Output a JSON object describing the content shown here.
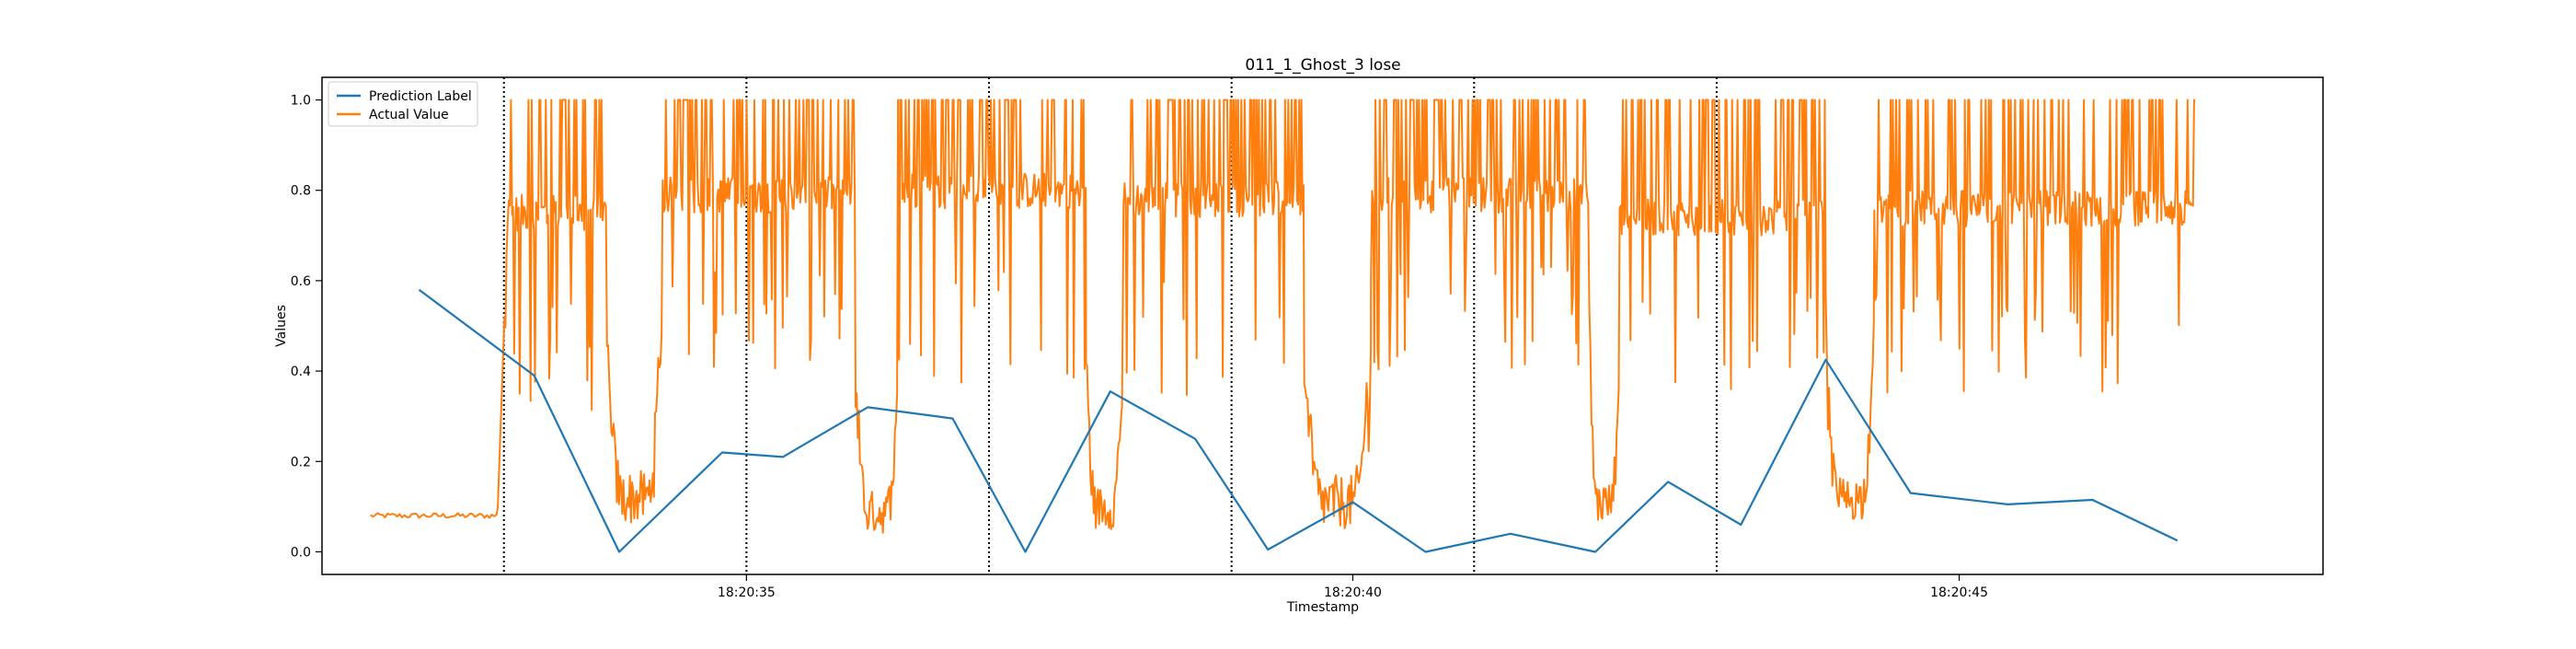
{
  "chart_data": {
    "type": "line",
    "title": "011_1_Ghost_3 lose",
    "xlabel": "Timestamp",
    "ylabel": "Values",
    "x_unit": "seconds",
    "xlim": [
      31.5,
      48.0
    ],
    "ylim": [
      -0.05,
      1.05
    ],
    "x_ticks": [
      {
        "value": 35,
        "label": "18:20:35"
      },
      {
        "value": 40,
        "label": "18:20:40"
      },
      {
        "value": 45,
        "label": "18:20:45"
      }
    ],
    "y_ticks": [
      {
        "value": 0.0,
        "label": "0.0"
      },
      {
        "value": 0.2,
        "label": "0.2"
      },
      {
        "value": 0.4,
        "label": "0.4"
      },
      {
        "value": 0.6,
        "label": "0.6"
      },
      {
        "value": 0.8,
        "label": "0.8"
      },
      {
        "value": 1.0,
        "label": "1.0"
      }
    ],
    "grid": false,
    "legend_position": "upper-left",
    "vertical_markers": [
      33.0,
      35.0,
      37.0,
      39.0,
      41.0,
      43.0
    ],
    "series": [
      {
        "name": "Prediction Label",
        "color": "#1f77b4",
        "x": [
          32.3,
          33.25,
          33.95,
          34.8,
          35.3,
          36.0,
          36.7,
          37.3,
          38.0,
          38.7,
          39.3,
          40.0,
          40.6,
          41.3,
          42.0,
          42.6,
          43.2,
          43.9,
          44.6,
          45.4,
          46.1,
          46.8
        ],
        "y": [
          0.58,
          0.39,
          0.0,
          0.22,
          0.21,
          0.32,
          0.295,
          0.0,
          0.355,
          0.25,
          0.005,
          0.11,
          0.0,
          0.04,
          0.0,
          0.155,
          0.06,
          0.425,
          0.13,
          0.105,
          0.115,
          0.025
        ]
      },
      {
        "name": "Actual Value",
        "color": "#ff7f0e",
        "segments": [
          {
            "x0": 31.9,
            "x1": 32.95,
            "shape": "flat",
            "base": 0.08,
            "amp": 0.012
          },
          {
            "x0": 32.95,
            "x1": 33.85,
            "shape": "rise_fall",
            "base": 0.75,
            "amp": 0.35
          },
          {
            "x0": 33.85,
            "x1": 34.3,
            "shape": "dip",
            "base": 0.06,
            "amp": 0.15
          },
          {
            "x0": 34.3,
            "x1": 35.9,
            "shape": "plateau",
            "base": 0.79,
            "amp": 0.3
          },
          {
            "x0": 35.9,
            "x1": 36.25,
            "shape": "dip",
            "base": 0.04,
            "amp": 0.12
          },
          {
            "x0": 36.25,
            "x1": 37.8,
            "shape": "plateau",
            "base": 0.8,
            "amp": 0.35
          },
          {
            "x0": 37.8,
            "x1": 38.1,
            "shape": "dip",
            "base": 0.05,
            "amp": 0.12
          },
          {
            "x0": 38.1,
            "x1": 39.6,
            "shape": "plateau",
            "base": 0.78,
            "amp": 0.35
          },
          {
            "x0": 39.6,
            "x1": 40.15,
            "shape": "dip",
            "base": 0.05,
            "amp": 0.15
          },
          {
            "x0": 40.15,
            "x1": 41.95,
            "shape": "plateau",
            "base": 0.79,
            "amp": 0.3
          },
          {
            "x0": 41.95,
            "x1": 42.2,
            "shape": "dip",
            "base": 0.06,
            "amp": 0.12
          },
          {
            "x0": 42.2,
            "x1": 43.9,
            "shape": "plateau",
            "base": 0.74,
            "amp": 0.3
          },
          {
            "x0": 43.9,
            "x1": 44.3,
            "shape": "dip",
            "base": 0.07,
            "amp": 0.12
          },
          {
            "x0": 44.3,
            "x1": 46.95,
            "shape": "plateau",
            "base": 0.76,
            "amp": 0.32
          }
        ]
      }
    ]
  }
}
